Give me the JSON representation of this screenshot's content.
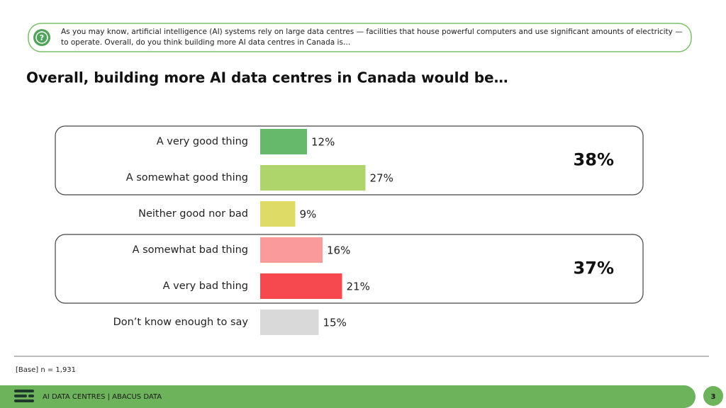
{
  "question": "As you may know, artificial intelligence (AI) systems rely on large data centres — facilities that house powerful computers and use significant amounts of electricity — to operate. Overall, do you think building more AI data centres in Canada is…",
  "chart_data": {
    "type": "bar",
    "orientation": "horizontal",
    "title": "Overall, building more AI data centres in Canada would be…",
    "categories": [
      "A very good thing",
      "A somewhat good thing",
      "Neither good nor bad",
      "A somewhat bad thing",
      "A very bad thing",
      "Don’t know enough to say"
    ],
    "values": [
      12,
      27,
      9,
      16,
      21,
      15
    ],
    "value_labels": [
      "12%",
      "27%",
      "9%",
      "16%",
      "21%",
      "15%"
    ],
    "colors": [
      "#66b86a",
      "#aed56b",
      "#dedc66",
      "#fa9a9a",
      "#f5494f",
      "#d9d9d9"
    ],
    "groups": [
      {
        "value": 38,
        "label": "38%",
        "categories": [
          "A very good thing",
          "A somewhat good thing"
        ]
      },
      {
        "value": 37,
        "label": "37%",
        "categories": [
          "A somewhat bad thing",
          "A very bad thing"
        ]
      }
    ]
  },
  "base": "[Base] n = 1,931",
  "footer": "AI DATA CENTRES | ABACUS DATA",
  "page": 3
}
